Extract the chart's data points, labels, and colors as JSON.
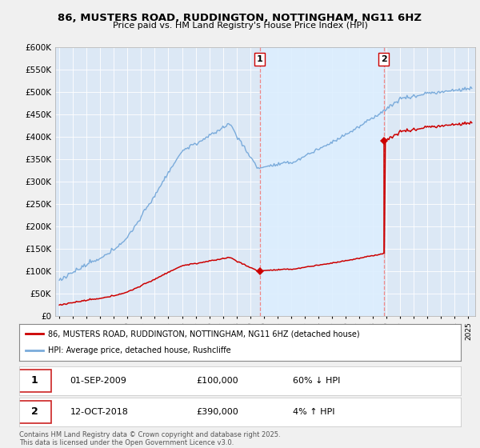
{
  "title": "86, MUSTERS ROAD, RUDDINGTON, NOTTINGHAM, NG11 6HZ",
  "subtitle": "Price paid vs. HM Land Registry's House Price Index (HPI)",
  "ylim": [
    0,
    600000
  ],
  "yticks": [
    0,
    50000,
    100000,
    150000,
    200000,
    250000,
    300000,
    350000,
    400000,
    450000,
    500000,
    550000,
    600000
  ],
  "xlim_min": 1994.7,
  "xlim_max": 2025.5,
  "sale1_year": 2009,
  "sale1_month": 9,
  "sale1_price": 100000,
  "sale2_year": 2018,
  "sale2_month": 10,
  "sale2_price": 390000,
  "legend_property": "86, MUSTERS ROAD, RUDDINGTON, NOTTINGHAM, NG11 6HZ (detached house)",
  "legend_hpi": "HPI: Average price, detached house, Rushcliffe",
  "property_color": "#cc0000",
  "hpi_color": "#7aabdb",
  "shade_color": "#ddeeff",
  "vline_color": "#ee8888",
  "bg_color": "#dce8f5",
  "footer": "Contains HM Land Registry data © Crown copyright and database right 2025.\nThis data is licensed under the Open Government Licence v3.0."
}
